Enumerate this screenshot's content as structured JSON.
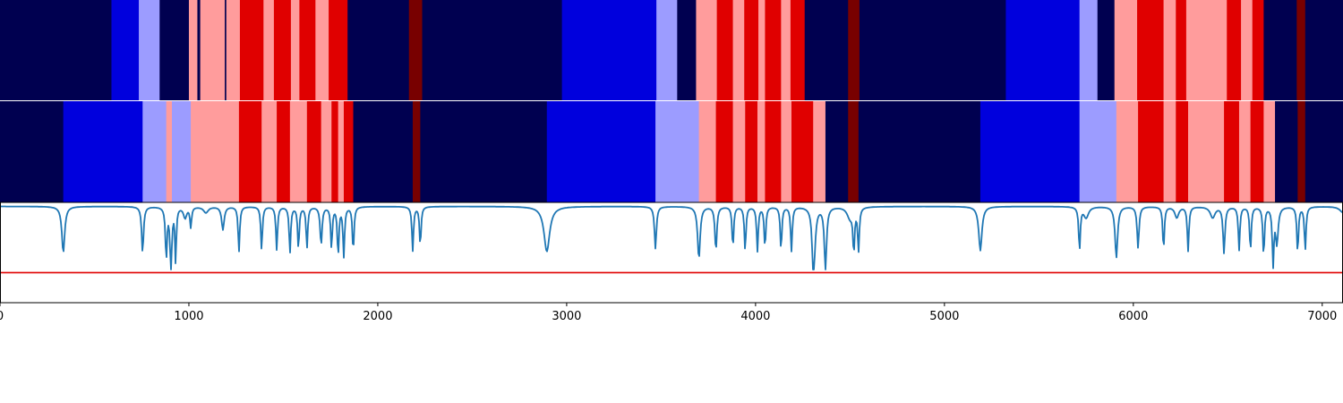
{
  "chart_data": {
    "type": "heatmap",
    "title": "",
    "xlabel": "",
    "ylabel": "",
    "xlim": [
      0,
      7110
    ],
    "x_ticks": [
      "0",
      "1000",
      "2000",
      "3000",
      "4000",
      "5000",
      "6000",
      "7000"
    ],
    "x_tick_values": [
      0,
      1000,
      2000,
      3000,
      4000,
      5000,
      6000,
      7000
    ],
    "palette": {
      "dark_blue": "#000050",
      "blue": "#0000dd",
      "light_blue": "#9c9cff",
      "light_red": "#ff9c9c",
      "red": "#e00000",
      "dark_red": "#780000"
    },
    "segmentation_rows": [
      {
        "segments": [
          [
            0,
            590,
            "dark_blue"
          ],
          [
            590,
            735,
            "blue"
          ],
          [
            735,
            845,
            "light_blue"
          ],
          [
            845,
            1000,
            "dark_blue"
          ],
          [
            1000,
            1045,
            "light_red"
          ],
          [
            1045,
            1060,
            "dark_blue"
          ],
          [
            1060,
            1190,
            "light_red"
          ],
          [
            1190,
            1198,
            "dark_blue"
          ],
          [
            1198,
            1270,
            "light_red"
          ],
          [
            1270,
            1395,
            "red"
          ],
          [
            1395,
            1450,
            "light_red"
          ],
          [
            1450,
            1540,
            "red"
          ],
          [
            1540,
            1585,
            "light_red"
          ],
          [
            1585,
            1670,
            "red"
          ],
          [
            1670,
            1740,
            "light_red"
          ],
          [
            1740,
            1840,
            "red"
          ],
          [
            1840,
            2165,
            "dark_blue"
          ],
          [
            2165,
            2235,
            "dark_red"
          ],
          [
            2235,
            2975,
            "dark_blue"
          ],
          [
            2975,
            3475,
            "blue"
          ],
          [
            3475,
            3585,
            "light_blue"
          ],
          [
            3585,
            3685,
            "dark_blue"
          ],
          [
            3685,
            3795,
            "light_red"
          ],
          [
            3795,
            3880,
            "red"
          ],
          [
            3880,
            3940,
            "light_red"
          ],
          [
            3940,
            4015,
            "red"
          ],
          [
            4015,
            4050,
            "light_red"
          ],
          [
            4050,
            4135,
            "red"
          ],
          [
            4135,
            4185,
            "light_red"
          ],
          [
            4185,
            4260,
            "red"
          ],
          [
            4260,
            4490,
            "dark_blue"
          ],
          [
            4490,
            4550,
            "dark_red"
          ],
          [
            4550,
            5325,
            "dark_blue"
          ],
          [
            5325,
            5715,
            "blue"
          ],
          [
            5715,
            5810,
            "light_blue"
          ],
          [
            5810,
            5900,
            "dark_blue"
          ],
          [
            5900,
            6020,
            "light_red"
          ],
          [
            6020,
            6160,
            "red"
          ],
          [
            6160,
            6225,
            "light_red"
          ],
          [
            6225,
            6280,
            "red"
          ],
          [
            6280,
            6495,
            "light_red"
          ],
          [
            6495,
            6570,
            "red"
          ],
          [
            6570,
            6630,
            "light_red"
          ],
          [
            6630,
            6690,
            "red"
          ],
          [
            6690,
            6865,
            "dark_blue"
          ],
          [
            6865,
            6910,
            "dark_red"
          ],
          [
            6910,
            7110,
            "dark_blue"
          ]
        ]
      },
      {
        "segments": [
          [
            0,
            335,
            "dark_blue"
          ],
          [
            335,
            755,
            "blue"
          ],
          [
            755,
            880,
            "light_blue"
          ],
          [
            880,
            910,
            "light_red"
          ],
          [
            910,
            1010,
            "light_blue"
          ],
          [
            1010,
            1265,
            "light_red"
          ],
          [
            1265,
            1385,
            "red"
          ],
          [
            1385,
            1465,
            "light_red"
          ],
          [
            1465,
            1535,
            "red"
          ],
          [
            1535,
            1625,
            "light_red"
          ],
          [
            1625,
            1700,
            "red"
          ],
          [
            1700,
            1755,
            "light_red"
          ],
          [
            1755,
            1790,
            "red"
          ],
          [
            1790,
            1820,
            "light_red"
          ],
          [
            1820,
            1870,
            "red"
          ],
          [
            1870,
            2185,
            "dark_blue"
          ],
          [
            2185,
            2225,
            "dark_red"
          ],
          [
            2225,
            2895,
            "dark_blue"
          ],
          [
            2895,
            3470,
            "blue"
          ],
          [
            3470,
            3700,
            "light_blue"
          ],
          [
            3700,
            3790,
            "light_red"
          ],
          [
            3790,
            3880,
            "red"
          ],
          [
            3880,
            3945,
            "light_red"
          ],
          [
            3945,
            4010,
            "red"
          ],
          [
            4010,
            4050,
            "light_red"
          ],
          [
            4050,
            4135,
            "red"
          ],
          [
            4135,
            4190,
            "light_red"
          ],
          [
            4190,
            4305,
            "red"
          ],
          [
            4305,
            4370,
            "light_red"
          ],
          [
            4370,
            4490,
            "dark_blue"
          ],
          [
            4490,
            4545,
            "dark_red"
          ],
          [
            4545,
            5190,
            "dark_blue"
          ],
          [
            5190,
            5715,
            "blue"
          ],
          [
            5715,
            5910,
            "light_blue"
          ],
          [
            5910,
            6025,
            "light_red"
          ],
          [
            6025,
            6160,
            "red"
          ],
          [
            6160,
            6225,
            "light_red"
          ],
          [
            6225,
            6290,
            "red"
          ],
          [
            6290,
            6480,
            "light_red"
          ],
          [
            6480,
            6560,
            "red"
          ],
          [
            6560,
            6620,
            "light_red"
          ],
          [
            6620,
            6690,
            "red"
          ],
          [
            6690,
            6750,
            "light_red"
          ],
          [
            6750,
            6870,
            "dark_blue"
          ],
          [
            6870,
            6910,
            "dark_red"
          ],
          [
            6910,
            7110,
            "dark_blue"
          ]
        ]
      }
    ],
    "line_panel": {
      "ylim": [
        0,
        1
      ],
      "baseline": 0.96,
      "threshold": 0.3,
      "line_color": "#1f77b4",
      "threshold_color": "#e00000",
      "dips": [
        [
          335,
          0.5,
          9
        ],
        [
          755,
          0.5,
          6
        ],
        [
          880,
          0.45,
          5
        ],
        [
          905,
          0.35,
          6
        ],
        [
          930,
          0.41,
          4
        ],
        [
          980,
          0.85,
          10
        ],
        [
          1010,
          0.76,
          5
        ],
        [
          1090,
          0.9,
          15
        ],
        [
          1180,
          0.73,
          8
        ],
        [
          1265,
          0.51,
          5
        ],
        [
          1385,
          0.53,
          5
        ],
        [
          1465,
          0.53,
          5
        ],
        [
          1535,
          0.5,
          5
        ],
        [
          1580,
          0.54,
          5
        ],
        [
          1625,
          0.55,
          5
        ],
        [
          1700,
          0.58,
          6
        ],
        [
          1755,
          0.55,
          5
        ],
        [
          1790,
          0.48,
          5
        ],
        [
          1820,
          0.47,
          5
        ],
        [
          1870,
          0.51,
          5
        ],
        [
          2185,
          0.52,
          5
        ],
        [
          2225,
          0.57,
          5
        ],
        [
          2895,
          0.51,
          18
        ],
        [
          3470,
          0.54,
          6
        ],
        [
          3700,
          0.44,
          8
        ],
        [
          3790,
          0.52,
          6
        ],
        [
          3880,
          0.55,
          5
        ],
        [
          3945,
          0.52,
          5
        ],
        [
          4010,
          0.52,
          5
        ],
        [
          4050,
          0.55,
          5
        ],
        [
          4135,
          0.53,
          5
        ],
        [
          4190,
          0.52,
          5
        ],
        [
          4305,
          0.51,
          6
        ],
        [
          4310,
          0.6,
          10
        ],
        [
          4370,
          0.34,
          7
        ],
        [
          4500,
          0.85,
          18
        ],
        [
          4520,
          0.54,
          5
        ],
        [
          4545,
          0.53,
          5
        ],
        [
          5190,
          0.52,
          10
        ],
        [
          5715,
          0.53,
          5
        ],
        [
          5750,
          0.85,
          15
        ],
        [
          5910,
          0.45,
          8
        ],
        [
          6025,
          0.55,
          6
        ],
        [
          6160,
          0.53,
          5
        ],
        [
          6230,
          0.85,
          12
        ],
        [
          6290,
          0.52,
          5
        ],
        [
          6420,
          0.85,
          15
        ],
        [
          6480,
          0.5,
          6
        ],
        [
          6560,
          0.53,
          5
        ],
        [
          6620,
          0.52,
          5
        ],
        [
          6690,
          0.47,
          5
        ],
        [
          6740,
          0.4,
          5
        ],
        [
          6760,
          0.6,
          8
        ],
        [
          6870,
          0.5,
          5
        ],
        [
          6910,
          0.53,
          5
        ],
        [
          7110,
          0.9,
          20
        ]
      ]
    }
  }
}
